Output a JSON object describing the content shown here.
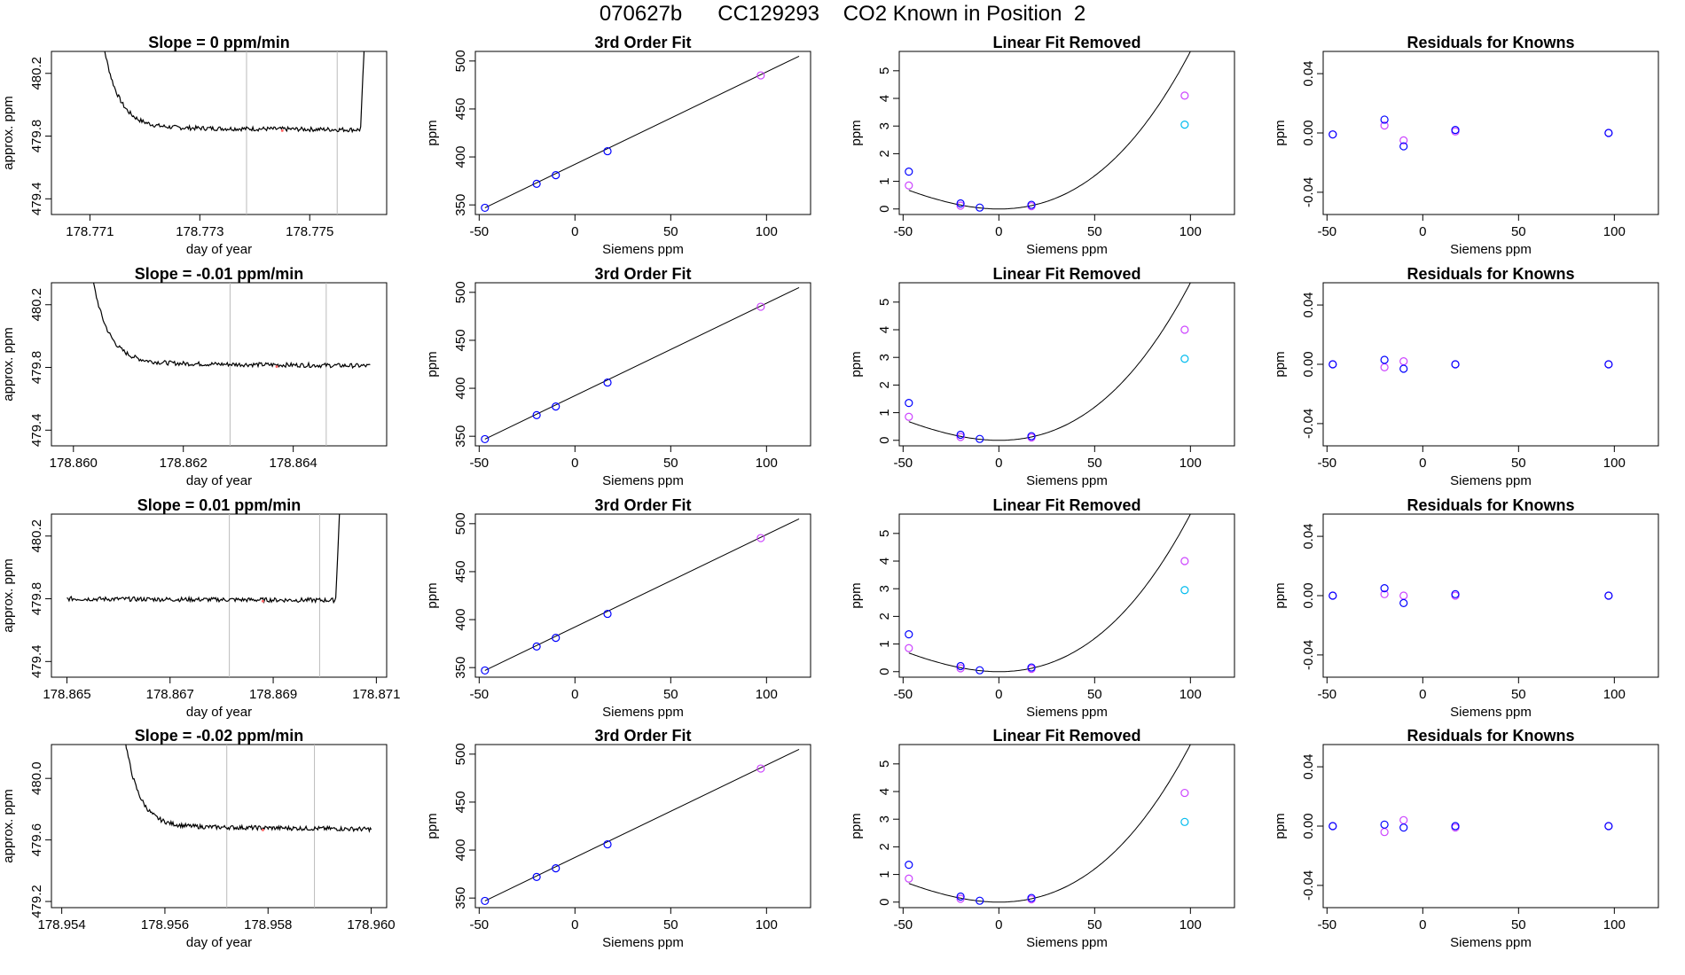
{
  "page": {
    "title": "070627b      CC129293    CO2 Known in Position  2"
  },
  "colors": {
    "trace": "#000000",
    "vline": "#bbbbbb",
    "point_a": "#0000ff",
    "point_b": "#cc44ff",
    "point_c": "#00bbee",
    "fit_line": "#000000",
    "marker": "#ff6666"
  },
  "chart_data": [
    {
      "type": "line",
      "panel": "trace",
      "row": 0,
      "title": "Slope =  0  ppm/min",
      "xlabel": "day of year",
      "ylabel": "approx. ppm",
      "xlim": [
        178.7703,
        178.7764
      ],
      "ylim": [
        479.3,
        480.34
      ],
      "xticks": [
        "178.771",
        "178.773",
        "178.775"
      ],
      "yticks": [
        "479.4",
        "479.8",
        "480.2"
      ],
      "vlines": [
        178.77385,
        178.7755
      ],
      "start": 178.7711,
      "end": 178.7761,
      "pattern": "rise-both",
      "base": 479.855,
      "plateau": 479.84,
      "marker_x": 178.7745
    },
    {
      "type": "scatter",
      "panel": "fit",
      "row": 0,
      "title": "3rd Order Fit",
      "xlabel": "Siemens ppm",
      "ylabel": "ppm",
      "xlim": [
        -52,
        123
      ],
      "ylim": [
        340,
        510
      ],
      "xticks": [
        "-50",
        "0",
        "50",
        "100"
      ],
      "yticks": [
        "350",
        "400",
        "450",
        "500"
      ],
      "points_a": [
        [
          -47,
          347
        ],
        [
          -20,
          372
        ],
        [
          -10,
          381
        ],
        [
          17,
          406
        ]
      ],
      "points_b": [
        [
          97,
          485
        ]
      ],
      "curve": "linear"
    },
    {
      "type": "scatter",
      "panel": "linfit",
      "row": 0,
      "title": "Linear Fit Removed",
      "xlabel": "Siemens ppm",
      "ylabel": "ppm",
      "xlim": [
        -52,
        123
      ],
      "ylim": [
        -0.2,
        5.7
      ],
      "xticks": [
        "-50",
        "0",
        "50",
        "100"
      ],
      "yticks": [
        "0",
        "1",
        "2",
        "3",
        "4",
        "5"
      ],
      "points_a": [
        [
          -47,
          1.35
        ],
        [
          -20,
          0.2
        ],
        [
          -10,
          0.05
        ],
        [
          17,
          0.15
        ]
      ],
      "points_b": [
        [
          -47,
          0.85
        ],
        [
          -20,
          0.12
        ],
        [
          17,
          0.1
        ],
        [
          97,
          4.1
        ]
      ],
      "points_c": [
        [
          97,
          3.05
        ]
      ],
      "curve": "quadratic"
    },
    {
      "type": "scatter",
      "panel": "resid",
      "row": 0,
      "title": "Residuals for Knowns",
      "xlabel": "Siemens ppm",
      "ylabel": "ppm",
      "xlim": [
        -52,
        123
      ],
      "ylim": [
        -0.055,
        0.055
      ],
      "xticks": [
        "-50",
        "0",
        "50",
        "100"
      ],
      "yticks": [
        "-0.04",
        "0.00",
        "0.04"
      ],
      "points_a": [
        [
          -47,
          -0.001
        ],
        [
          -20,
          0.009
        ],
        [
          -10,
          -0.009
        ],
        [
          17,
          0.002
        ],
        [
          97,
          0.0
        ]
      ],
      "points_b": [
        [
          -47,
          -0.001
        ],
        [
          -20,
          0.005
        ],
        [
          -10,
          -0.005
        ],
        [
          17,
          0.001
        ],
        [
          97,
          0.0
        ]
      ]
    },
    {
      "type": "line",
      "panel": "trace",
      "row": 1,
      "title": "Slope =  -0.01  ppm/min",
      "xlabel": "day of year",
      "ylabel": "approx. ppm",
      "xlim": [
        178.8596,
        178.8657
      ],
      "ylim": [
        479.3,
        480.34
      ],
      "xticks": [
        "178.860",
        "178.862",
        "178.864"
      ],
      "yticks": [
        "479.4",
        "479.8",
        "480.2"
      ],
      "vlines": [
        178.86285,
        178.8646
      ],
      "start": 178.8602,
      "end": 178.8654,
      "pattern": "rise-left",
      "base": 479.83,
      "plateau": 479.81,
      "marker_x": 178.8637
    },
    {
      "type": "scatter",
      "panel": "fit",
      "row": 1,
      "title": "3rd Order Fit",
      "xlabel": "Siemens ppm",
      "ylabel": "ppm",
      "xlim": [
        -52,
        123
      ],
      "ylim": [
        340,
        510
      ],
      "xticks": [
        "-50",
        "0",
        "50",
        "100"
      ],
      "yticks": [
        "350",
        "400",
        "450",
        "500"
      ],
      "points_a": [
        [
          -47,
          347
        ],
        [
          -20,
          372
        ],
        [
          -10,
          381
        ],
        [
          17,
          406
        ]
      ],
      "points_b": [
        [
          97,
          485
        ]
      ],
      "curve": "linear"
    },
    {
      "type": "scatter",
      "panel": "linfit",
      "row": 1,
      "title": "Linear Fit Removed",
      "xlabel": "Siemens ppm",
      "ylabel": "ppm",
      "xlim": [
        -52,
        123
      ],
      "ylim": [
        -0.2,
        5.7
      ],
      "xticks": [
        "-50",
        "0",
        "50",
        "100"
      ],
      "yticks": [
        "0",
        "1",
        "2",
        "3",
        "4",
        "5"
      ],
      "points_a": [
        [
          -47,
          1.35
        ],
        [
          -20,
          0.2
        ],
        [
          -10,
          0.05
        ],
        [
          17,
          0.15
        ]
      ],
      "points_b": [
        [
          -47,
          0.85
        ],
        [
          -20,
          0.12
        ],
        [
          17,
          0.1
        ],
        [
          97,
          4.0
        ]
      ],
      "points_c": [
        [
          97,
          2.95
        ]
      ],
      "curve": "quadratic"
    },
    {
      "type": "scatter",
      "panel": "resid",
      "row": 1,
      "title": "Residuals for Knowns",
      "xlabel": "Siemens ppm",
      "ylabel": "ppm",
      "xlim": [
        -52,
        123
      ],
      "ylim": [
        -0.055,
        0.055
      ],
      "xticks": [
        "-50",
        "0",
        "50",
        "100"
      ],
      "yticks": [
        "-0.04",
        "0.00",
        "0.04"
      ],
      "points_a": [
        [
          -47,
          0.0
        ],
        [
          -20,
          0.003
        ],
        [
          -10,
          -0.003
        ],
        [
          17,
          0.0
        ],
        [
          97,
          0.0
        ]
      ],
      "points_b": [
        [
          -47,
          0.0
        ],
        [
          -20,
          -0.002
        ],
        [
          -10,
          0.002
        ],
        [
          17,
          0.0
        ],
        [
          97,
          0.0
        ]
      ]
    },
    {
      "type": "line",
      "panel": "trace",
      "row": 2,
      "title": "Slope =  0.01  ppm/min",
      "xlabel": "day of year",
      "ylabel": "approx. ppm",
      "xlim": [
        178.8647,
        178.8712
      ],
      "ylim": [
        479.3,
        480.34
      ],
      "xticks": [
        "178.865",
        "178.867",
        "178.869",
        "178.871"
      ],
      "yticks": [
        "479.4",
        "479.8",
        "480.2"
      ],
      "vlines": [
        178.86815,
        178.8699
      ],
      "start": 178.865,
      "end": 178.8704,
      "pattern": "rise-right",
      "base": 479.8,
      "plateau": 479.79,
      "marker_x": 178.8688
    },
    {
      "type": "scatter",
      "panel": "fit",
      "row": 2,
      "title": "3rd Order Fit",
      "xlabel": "Siemens ppm",
      "ylabel": "ppm",
      "xlim": [
        -52,
        123
      ],
      "ylim": [
        340,
        510
      ],
      "xticks": [
        "-50",
        "0",
        "50",
        "100"
      ],
      "yticks": [
        "350",
        "400",
        "450",
        "500"
      ],
      "points_a": [
        [
          -47,
          347
        ],
        [
          -20,
          372
        ],
        [
          -10,
          381
        ],
        [
          17,
          406
        ]
      ],
      "points_b": [
        [
          97,
          485
        ]
      ],
      "curve": "linear"
    },
    {
      "type": "scatter",
      "panel": "linfit",
      "row": 2,
      "title": "Linear Fit Removed",
      "xlabel": "Siemens ppm",
      "ylabel": "ppm",
      "xlim": [
        -52,
        123
      ],
      "ylim": [
        -0.2,
        5.7
      ],
      "xticks": [
        "-50",
        "0",
        "50",
        "100"
      ],
      "yticks": [
        "0",
        "1",
        "2",
        "3",
        "4",
        "5"
      ],
      "points_a": [
        [
          -47,
          1.35
        ],
        [
          -20,
          0.2
        ],
        [
          -10,
          0.05
        ],
        [
          17,
          0.15
        ]
      ],
      "points_b": [
        [
          -47,
          0.85
        ],
        [
          -20,
          0.12
        ],
        [
          17,
          0.1
        ],
        [
          97,
          4.0
        ]
      ],
      "points_c": [
        [
          97,
          2.95
        ]
      ],
      "curve": "quadratic"
    },
    {
      "type": "scatter",
      "panel": "resid",
      "row": 2,
      "title": "Residuals for Knowns",
      "xlabel": "Siemens ppm",
      "ylabel": "ppm",
      "xlim": [
        -52,
        123
      ],
      "ylim": [
        -0.055,
        0.055
      ],
      "xticks": [
        "-50",
        "0",
        "50",
        "100"
      ],
      "yticks": [
        "-0.04",
        "0.00",
        "0.04"
      ],
      "points_a": [
        [
          -47,
          0.0
        ],
        [
          -20,
          0.005
        ],
        [
          -10,
          -0.005
        ],
        [
          17,
          0.001
        ],
        [
          97,
          0.0
        ]
      ],
      "points_b": [
        [
          -47,
          0.0
        ],
        [
          -20,
          0.001
        ],
        [
          -10,
          0.0
        ],
        [
          17,
          0.0
        ],
        [
          97,
          0.0
        ]
      ]
    },
    {
      "type": "line",
      "panel": "trace",
      "row": 3,
      "title": "Slope =  -0.02  ppm/min",
      "xlabel": "day of year",
      "ylabel": "approx. ppm",
      "xlim": [
        178.9538,
        178.9603
      ],
      "ylim": [
        479.16,
        480.22
      ],
      "xticks": [
        "178.954",
        "178.956",
        "178.958",
        "178.960"
      ],
      "yticks": [
        "479.2",
        "479.6",
        "480.0"
      ],
      "vlines": [
        178.9572,
        178.9589
      ],
      "start": 178.9551,
      "end": 178.96,
      "pattern": "rise-left",
      "base": 479.69,
      "plateau": 479.67,
      "marker_x": 178.9579
    },
    {
      "type": "scatter",
      "panel": "fit",
      "row": 3,
      "title": "3rd Order Fit",
      "xlabel": "Siemens ppm",
      "ylabel": "ppm",
      "xlim": [
        -52,
        123
      ],
      "ylim": [
        340,
        510
      ],
      "xticks": [
        "-50",
        "0",
        "50",
        "100"
      ],
      "yticks": [
        "350",
        "400",
        "450",
        "500"
      ],
      "points_a": [
        [
          -47,
          347
        ],
        [
          -20,
          372
        ],
        [
          -10,
          381
        ],
        [
          17,
          406
        ]
      ],
      "points_b": [
        [
          97,
          485
        ]
      ],
      "curve": "linear"
    },
    {
      "type": "scatter",
      "panel": "linfit",
      "row": 3,
      "title": "Linear Fit Removed",
      "xlabel": "Siemens ppm",
      "ylabel": "ppm",
      "xlim": [
        -52,
        123
      ],
      "ylim": [
        -0.2,
        5.7
      ],
      "xticks": [
        "-50",
        "0",
        "50",
        "100"
      ],
      "yticks": [
        "0",
        "1",
        "2",
        "3",
        "4",
        "5"
      ],
      "points_a": [
        [
          -47,
          1.35
        ],
        [
          -20,
          0.2
        ],
        [
          -10,
          0.05
        ],
        [
          17,
          0.15
        ]
      ],
      "points_b": [
        [
          -47,
          0.85
        ],
        [
          -20,
          0.12
        ],
        [
          17,
          0.1
        ],
        [
          97,
          3.95
        ]
      ],
      "points_c": [
        [
          97,
          2.9
        ]
      ],
      "curve": "quadratic"
    },
    {
      "type": "scatter",
      "panel": "resid",
      "row": 3,
      "title": "Residuals for Knowns",
      "xlabel": "Siemens ppm",
      "ylabel": "ppm",
      "xlim": [
        -52,
        123
      ],
      "ylim": [
        -0.055,
        0.055
      ],
      "xticks": [
        "-50",
        "0",
        "50",
        "100"
      ],
      "yticks": [
        "-0.04",
        "0.00",
        "0.04"
      ],
      "points_a": [
        [
          -47,
          0.0
        ],
        [
          -20,
          0.001
        ],
        [
          -10,
          -0.001
        ],
        [
          17,
          0.0
        ],
        [
          97,
          0.0
        ]
      ],
      "points_b": [
        [
          -47,
          0.0
        ],
        [
          -20,
          -0.004
        ],
        [
          -10,
          0.004
        ],
        [
          17,
          -0.001
        ],
        [
          97,
          0.0
        ]
      ]
    }
  ]
}
